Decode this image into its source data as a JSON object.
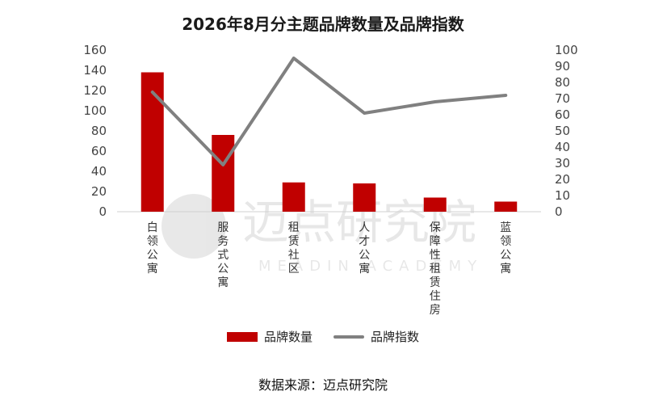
{
  "chart_data": {
    "type": "bar",
    "title": "2026年8月分主题品牌数量及品牌指数",
    "categories": [
      "白领公寓",
      "服务式公寓",
      "租赁社区",
      "人才公寓",
      "保障性租赁住房",
      "蓝领公寓"
    ],
    "series": [
      {
        "name": "品牌数量",
        "type": "bar",
        "axis": "left",
        "values": [
          138,
          76,
          29,
          28,
          14,
          10
        ],
        "color": "#c00000"
      },
      {
        "name": "品牌指数",
        "type": "line",
        "axis": "right",
        "values": [
          74,
          29,
          95,
          61,
          68,
          72
        ],
        "color": "#808080"
      }
    ],
    "ylim_left": [
      0,
      160
    ],
    "yticks_left": [
      0,
      20,
      40,
      60,
      80,
      100,
      120,
      140,
      160
    ],
    "ylim_right": [
      0,
      100
    ],
    "yticks_right": [
      0,
      10,
      20,
      30,
      40,
      50,
      60,
      70,
      80,
      90,
      100
    ],
    "grid": false,
    "legend_position": "bottom"
  },
  "source_text": "数据来源：迈点研究院",
  "watermark": {
    "text": "迈点研究院",
    "subtext": "MEADIN ACADEMY",
    "icon": "meadin-logo-icon"
  }
}
